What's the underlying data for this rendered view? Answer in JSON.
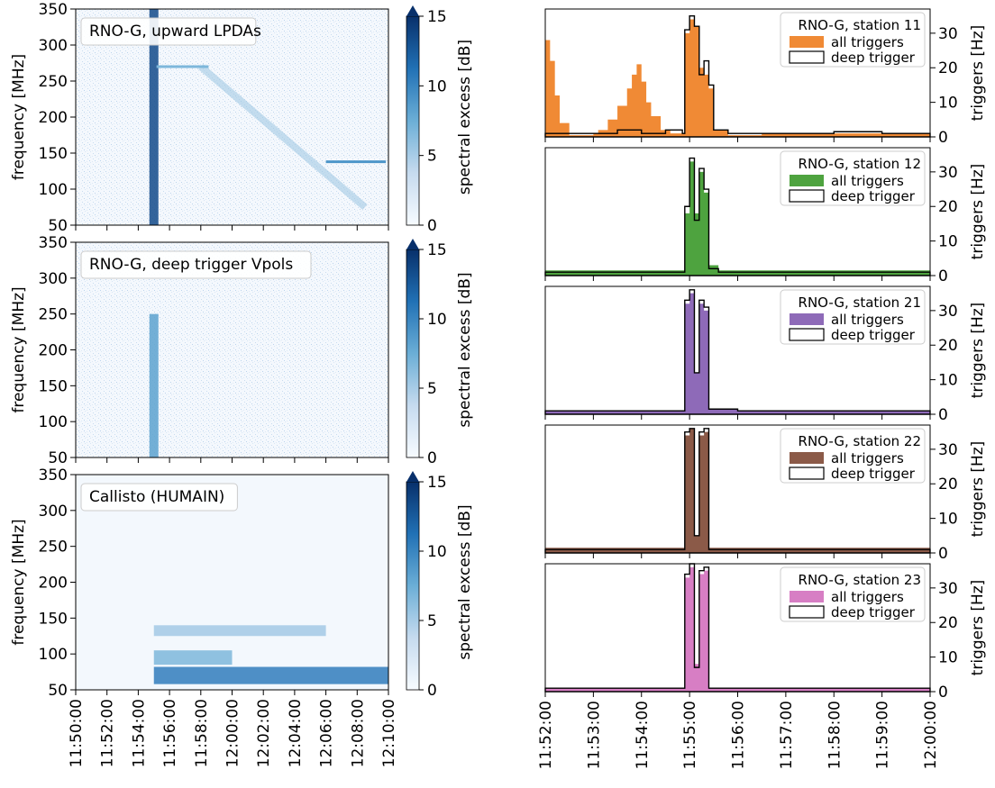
{
  "chart_data": [
    {
      "type": "heatmap",
      "legend_label": "RNO-G, upward LPDAs",
      "ylabel": "frequency [MHz]",
      "ylim": [
        50,
        350
      ],
      "yticks": [
        "50",
        "100",
        "150",
        "200",
        "250",
        "300",
        "350"
      ],
      "xlim": [
        "11:50:00",
        "12:10:00"
      ],
      "colorbar": {
        "label": "spectral excess [dB]",
        "range": [
          0,
          15
        ],
        "ticks": [
          "0",
          "5",
          "10",
          "15"
        ],
        "extend": "max"
      },
      "features": [
        {
          "kind": "burst",
          "time": "11:55:00",
          "freq_range": [
            50,
            350
          ],
          "intensity": 0.9
        },
        {
          "kind": "drift",
          "from_time": "11:58:00",
          "to_time": "12:08:30",
          "from_freq": 270,
          "to_freq": 75,
          "intensity": 0.35
        },
        {
          "kind": "line",
          "from_time": "11:55:10",
          "to_time": "11:58:30",
          "freq": 270,
          "intensity": 0.45
        },
        {
          "kind": "line",
          "from_time": "12:06:00",
          "to_time": "12:09:50",
          "freq": 138,
          "intensity": 0.6
        }
      ]
    },
    {
      "type": "heatmap",
      "legend_label": "RNO-G, deep trigger Vpols",
      "ylabel": "frequency [MHz]",
      "ylim": [
        50,
        350
      ],
      "yticks": [
        "50",
        "100",
        "150",
        "200",
        "250",
        "300",
        "350"
      ],
      "xlim": [
        "11:50:00",
        "12:10:00"
      ],
      "colorbar": {
        "label": "spectral excess [dB]",
        "range": [
          0,
          15
        ],
        "ticks": [
          "0",
          "5",
          "10",
          "15"
        ],
        "extend": "max"
      },
      "features": [
        {
          "kind": "burst",
          "time": "11:55:00",
          "freq_range": [
            50,
            250
          ],
          "intensity": 0.55
        }
      ]
    },
    {
      "type": "heatmap",
      "legend_label": "Callisto (HUMAIN)",
      "ylabel": "frequency [MHz]",
      "ylim": [
        50,
        350
      ],
      "yticks": [
        "50",
        "100",
        "150",
        "200",
        "250",
        "300",
        "350"
      ],
      "xlim": [
        "11:50:00",
        "12:10:00"
      ],
      "xticks": [
        "11:50:00",
        "11:52:00",
        "11:54:00",
        "11:56:00",
        "11:58:00",
        "12:00:00",
        "12:02:00",
        "12:04:00",
        "12:06:00",
        "12:08:00",
        "12:10:00"
      ],
      "colorbar": {
        "label": "spectral excess [dB]",
        "range": [
          0,
          15
        ],
        "ticks": [
          "0",
          "5",
          "10",
          "15"
        ],
        "extend": "max"
      },
      "features": [
        {
          "kind": "band",
          "from_time": "11:55:00",
          "to_time": "12:10:00",
          "freq_range": [
            58,
            82
          ],
          "intensity": 0.7
        },
        {
          "kind": "band",
          "from_time": "11:55:00",
          "to_time": "12:00:00",
          "freq_range": [
            85,
            105
          ],
          "intensity": 0.45
        },
        {
          "kind": "band",
          "from_time": "11:55:00",
          "to_time": "12:06:00",
          "freq_range": [
            125,
            140
          ],
          "intensity": 0.35
        }
      ]
    }
  ],
  "trigger_panels": {
    "xlim": [
      "11:52:00",
      "12:00:00"
    ],
    "xticks": [
      "11:52:00",
      "11:53:00",
      "11:54:00",
      "11:55:00",
      "11:56:00",
      "11:57:00",
      "11:58:00",
      "11:59:00",
      "12:00:00"
    ],
    "ylabel": "triggers [Hz]",
    "ylim": [
      0,
      37
    ],
    "yticks": [
      "0",
      "10",
      "20",
      "30"
    ],
    "legend_labels": [
      "all triggers",
      "deep trigger"
    ],
    "stations": [
      {
        "title": "RNO-G, station 11",
        "color": "#f08a35",
        "all_triggers": [
          [
            0.0,
            28
          ],
          [
            0.1,
            22
          ],
          [
            0.2,
            12
          ],
          [
            0.3,
            4
          ],
          [
            0.5,
            0.5
          ],
          [
            1.0,
            1
          ],
          [
            1.1,
            2
          ],
          [
            1.3,
            5
          ],
          [
            1.5,
            9
          ],
          [
            1.7,
            14
          ],
          [
            1.8,
            18
          ],
          [
            1.9,
            21
          ],
          [
            2.0,
            16
          ],
          [
            2.1,
            10
          ],
          [
            2.2,
            6
          ],
          [
            2.4,
            2
          ],
          [
            2.6,
            1
          ],
          [
            2.85,
            1
          ],
          [
            2.9,
            30
          ],
          [
            3.0,
            34
          ],
          [
            3.1,
            32
          ],
          [
            3.2,
            20
          ],
          [
            3.3,
            18
          ],
          [
            3.4,
            14
          ],
          [
            3.5,
            2
          ],
          [
            3.8,
            0.5
          ],
          [
            4.5,
            1
          ],
          [
            5.2,
            1
          ],
          [
            6.0,
            1
          ],
          [
            7.0,
            1
          ],
          [
            8.0,
            1
          ]
        ],
        "deep_trigger": [
          [
            0.0,
            1
          ],
          [
            0.5,
            1
          ],
          [
            1.0,
            1
          ],
          [
            1.5,
            2
          ],
          [
            2.0,
            1
          ],
          [
            2.5,
            2
          ],
          [
            2.85,
            1
          ],
          [
            2.9,
            31
          ],
          [
            3.0,
            35
          ],
          [
            3.1,
            32
          ],
          [
            3.2,
            18
          ],
          [
            3.3,
            22
          ],
          [
            3.4,
            15
          ],
          [
            3.5,
            2
          ],
          [
            3.8,
            1
          ],
          [
            4.5,
            1
          ],
          [
            5.2,
            1
          ],
          [
            6.0,
            1.5
          ],
          [
            7.0,
            1
          ],
          [
            8.0,
            1
          ]
        ]
      },
      {
        "title": "RNO-G, station 12",
        "color": "#4ea33f",
        "all_triggers": [
          [
            0.0,
            1.5
          ],
          [
            1.0,
            1.5
          ],
          [
            2.0,
            1.5
          ],
          [
            2.8,
            1.5
          ],
          [
            2.9,
            18
          ],
          [
            3.0,
            33
          ],
          [
            3.1,
            18
          ],
          [
            3.2,
            30
          ],
          [
            3.3,
            24
          ],
          [
            3.4,
            3
          ],
          [
            3.6,
            1.5
          ],
          [
            4.5,
            1.5
          ],
          [
            6.0,
            1.5
          ],
          [
            8.0,
            1.5
          ]
        ],
        "deep_trigger": [
          [
            0.0,
            1
          ],
          [
            1.0,
            1
          ],
          [
            2.0,
            1
          ],
          [
            2.8,
            1
          ],
          [
            2.9,
            20
          ],
          [
            3.0,
            34
          ],
          [
            3.1,
            16
          ],
          [
            3.2,
            31
          ],
          [
            3.3,
            25
          ],
          [
            3.4,
            2
          ],
          [
            3.6,
            1
          ],
          [
            4.5,
            1
          ],
          [
            6.0,
            1
          ],
          [
            8.0,
            1
          ]
        ]
      },
      {
        "title": "RNO-G, station 21",
        "color": "#8e6ab8",
        "all_triggers": [
          [
            0.0,
            1
          ],
          [
            1.0,
            1
          ],
          [
            2.0,
            1
          ],
          [
            2.8,
            1
          ],
          [
            2.9,
            32
          ],
          [
            3.0,
            35
          ],
          [
            3.1,
            12
          ],
          [
            3.2,
            32
          ],
          [
            3.3,
            30
          ],
          [
            3.4,
            1.5
          ],
          [
            4.0,
            1
          ],
          [
            5.0,
            1
          ],
          [
            6.0,
            1
          ],
          [
            7.0,
            1
          ],
          [
            8.0,
            1
          ]
        ],
        "deep_trigger": [
          [
            0.0,
            1
          ],
          [
            1.0,
            1
          ],
          [
            2.0,
            1
          ],
          [
            2.8,
            1
          ],
          [
            2.9,
            33
          ],
          [
            3.0,
            36
          ],
          [
            3.1,
            12
          ],
          [
            3.2,
            33
          ],
          [
            3.3,
            31
          ],
          [
            3.4,
            1.5
          ],
          [
            4.0,
            1
          ],
          [
            5.0,
            1
          ],
          [
            6.0,
            1
          ],
          [
            7.0,
            1
          ],
          [
            8.0,
            1
          ]
        ]
      },
      {
        "title": "RNO-G, station 22",
        "color": "#8b5a48",
        "all_triggers": [
          [
            0.0,
            1.5
          ],
          [
            1.0,
            1.5
          ],
          [
            2.0,
            1.5
          ],
          [
            2.8,
            1.5
          ],
          [
            2.9,
            34
          ],
          [
            3.0,
            36
          ],
          [
            3.1,
            5
          ],
          [
            3.2,
            34
          ],
          [
            3.3,
            35
          ],
          [
            3.4,
            1.5
          ],
          [
            4.0,
            1.5
          ],
          [
            5.0,
            1.5
          ],
          [
            6.0,
            1.5
          ],
          [
            7.0,
            1.5
          ],
          [
            8.0,
            1.5
          ]
        ],
        "deep_trigger": [
          [
            0.0,
            1
          ],
          [
            1.0,
            1
          ],
          [
            2.0,
            1
          ],
          [
            2.8,
            1
          ],
          [
            2.9,
            35
          ],
          [
            3.0,
            36
          ],
          [
            3.1,
            5
          ],
          [
            3.2,
            35
          ],
          [
            3.3,
            36
          ],
          [
            3.4,
            1
          ],
          [
            4.0,
            1
          ],
          [
            5.0,
            1
          ],
          [
            6.0,
            1
          ],
          [
            7.0,
            1
          ],
          [
            8.0,
            1
          ]
        ]
      },
      {
        "title": "RNO-G, station 23",
        "color": "#d77ec4",
        "all_triggers": [
          [
            0.0,
            1
          ],
          [
            1.0,
            1
          ],
          [
            2.0,
            1
          ],
          [
            2.8,
            1
          ],
          [
            2.9,
            33
          ],
          [
            3.0,
            36
          ],
          [
            3.1,
            8
          ],
          [
            3.2,
            34
          ],
          [
            3.3,
            35
          ],
          [
            3.4,
            1
          ],
          [
            4.0,
            1
          ],
          [
            5.0,
            1
          ],
          [
            6.0,
            1
          ],
          [
            7.0,
            1
          ],
          [
            8.0,
            1
          ]
        ],
        "deep_trigger": [
          [
            0.0,
            1
          ],
          [
            1.0,
            1
          ],
          [
            2.0,
            1
          ],
          [
            2.8,
            1
          ],
          [
            2.9,
            34
          ],
          [
            3.0,
            37
          ],
          [
            3.1,
            7
          ],
          [
            3.2,
            35
          ],
          [
            3.3,
            36
          ],
          [
            3.4,
            1
          ],
          [
            4.0,
            1
          ],
          [
            5.0,
            1
          ],
          [
            6.0,
            1
          ],
          [
            7.0,
            1
          ],
          [
            8.0,
            1
          ]
        ]
      }
    ]
  }
}
